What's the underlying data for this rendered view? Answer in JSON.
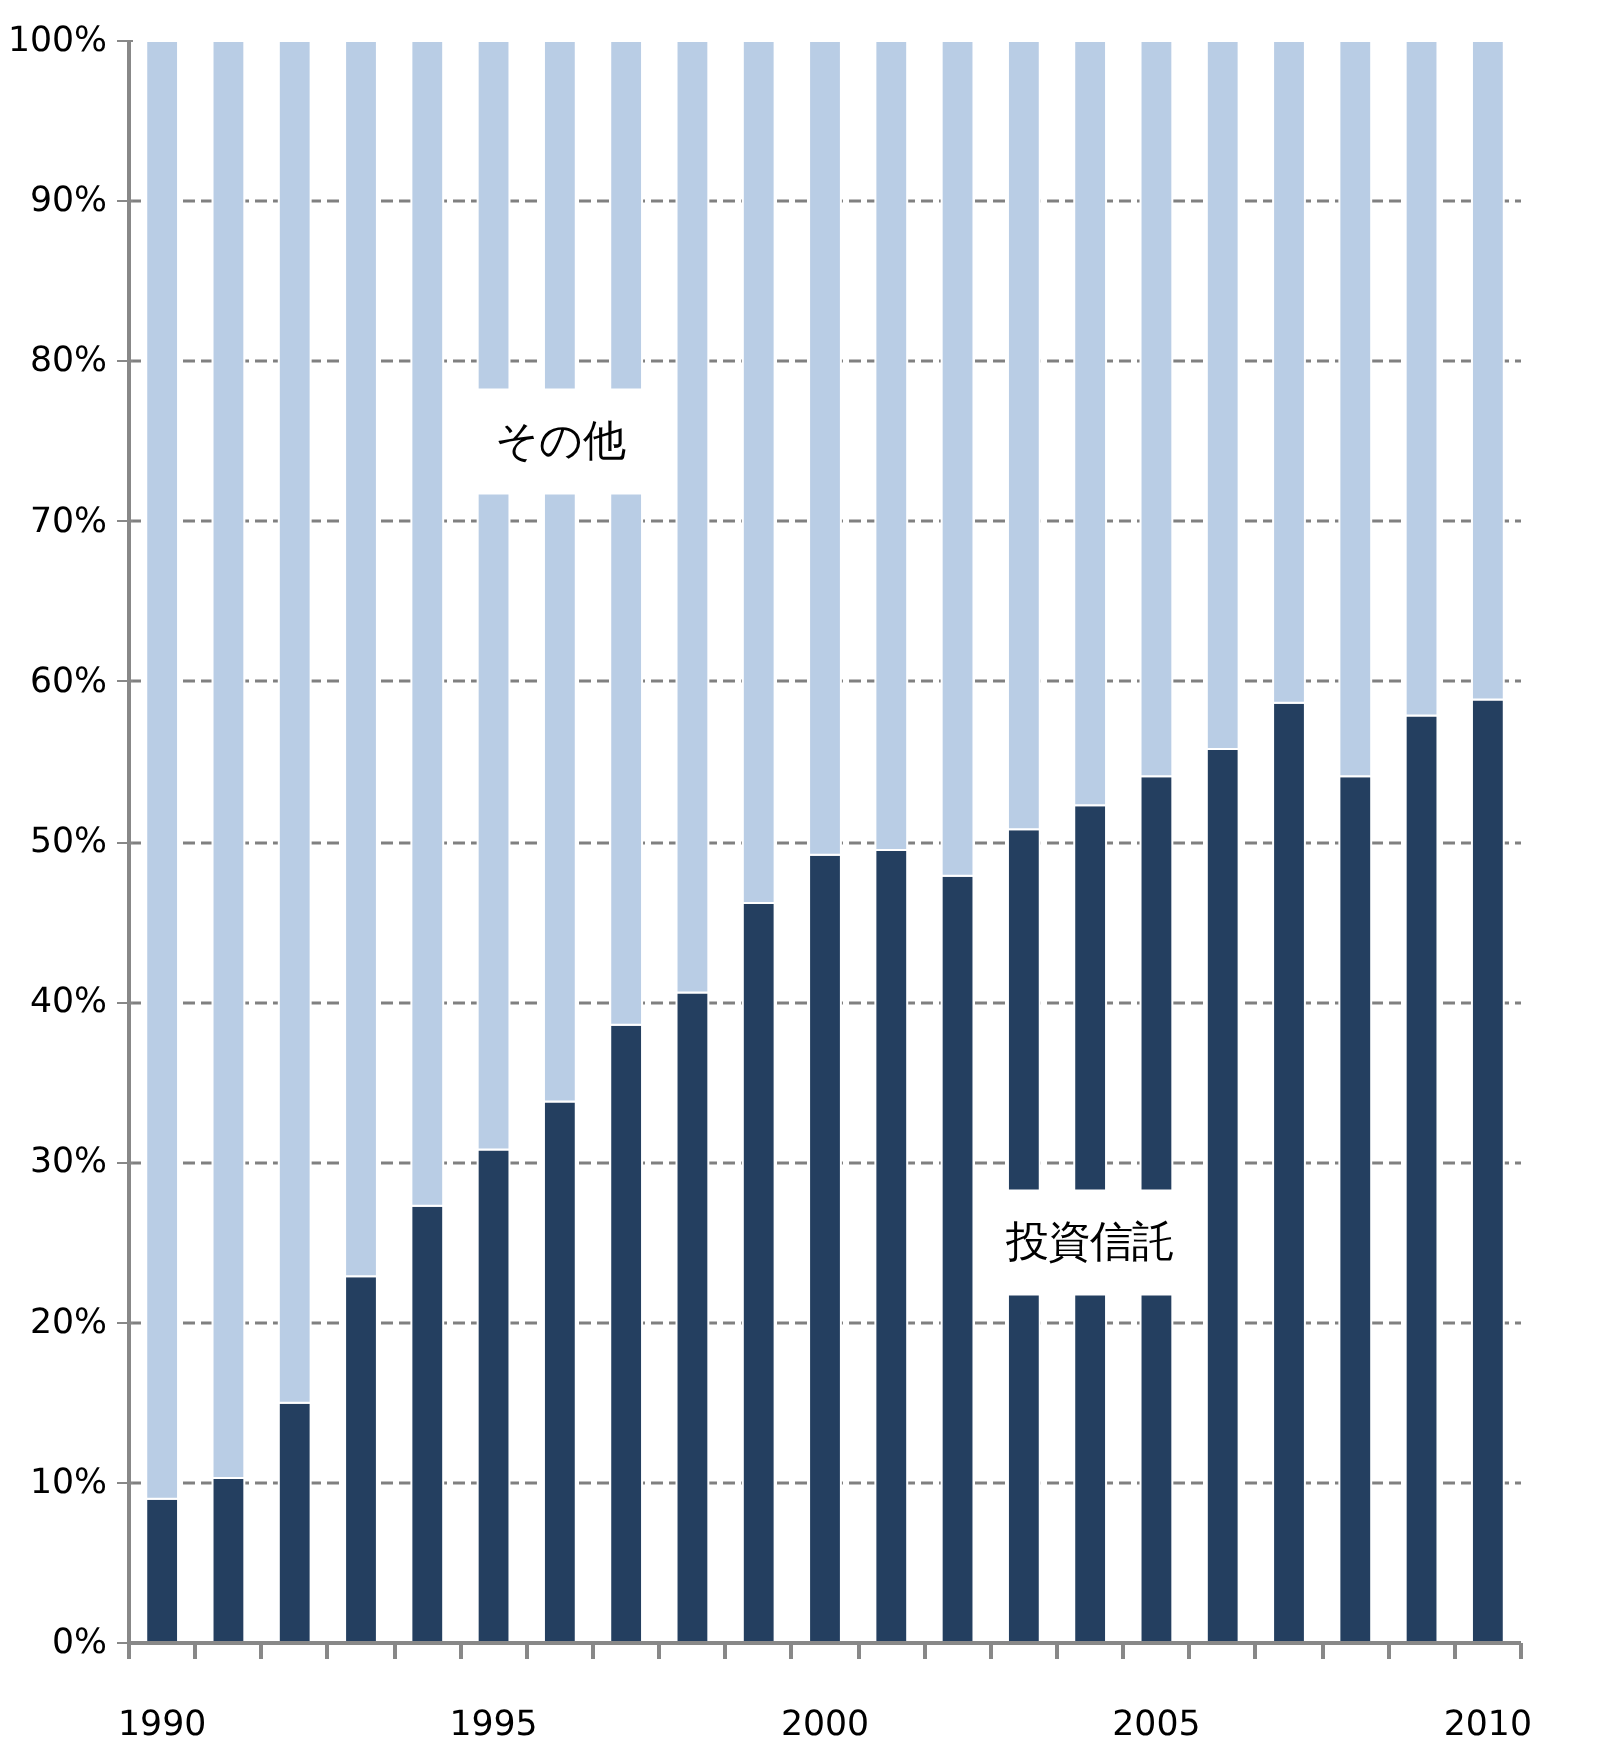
{
  "chart_data": {
    "type": "bar",
    "stacked": true,
    "categories": [
      "1990",
      null,
      null,
      null,
      null,
      "1995",
      null,
      null,
      null,
      null,
      "2000",
      null,
      null,
      null,
      null,
      "2005",
      null,
      null,
      null,
      null,
      "2010"
    ],
    "series": [
      {
        "name": "投資信託",
        "color": "#243f60",
        "values": [
          9.0,
          10.3,
          15.0,
          22.9,
          27.3,
          30.8,
          33.8,
          38.6,
          40.6,
          46.2,
          49.2,
          49.5,
          47.9,
          50.8,
          52.3,
          54.1,
          55.8,
          58.7,
          54.1,
          57.9,
          58.9
        ]
      },
      {
        "name": "その他",
        "color": "#b9cde5",
        "values": [
          91.0,
          89.7,
          85.0,
          77.1,
          72.7,
          69.2,
          66.2,
          61.4,
          59.4,
          53.8,
          50.8,
          50.5,
          52.1,
          49.2,
          47.7,
          45.9,
          44.2,
          41.3,
          45.9,
          42.1,
          41.1
        ]
      }
    ],
    "ylim": [
      0,
      100
    ],
    "yticks": [
      {
        "value": 0,
        "label": "0%"
      },
      {
        "value": 10,
        "label": "10%"
      },
      {
        "value": 20,
        "label": "20%"
      },
      {
        "value": 30,
        "label": "30%"
      },
      {
        "value": 40,
        "label": "40%"
      },
      {
        "value": 50,
        "label": "50%"
      },
      {
        "value": 60,
        "label": "60%"
      },
      {
        "value": 70,
        "label": "70%"
      },
      {
        "value": 80,
        "label": "80%"
      },
      {
        "value": 90,
        "label": "90%"
      },
      {
        "value": 100,
        "label": "100%"
      }
    ],
    "grid": "y",
    "legend": false
  }
}
